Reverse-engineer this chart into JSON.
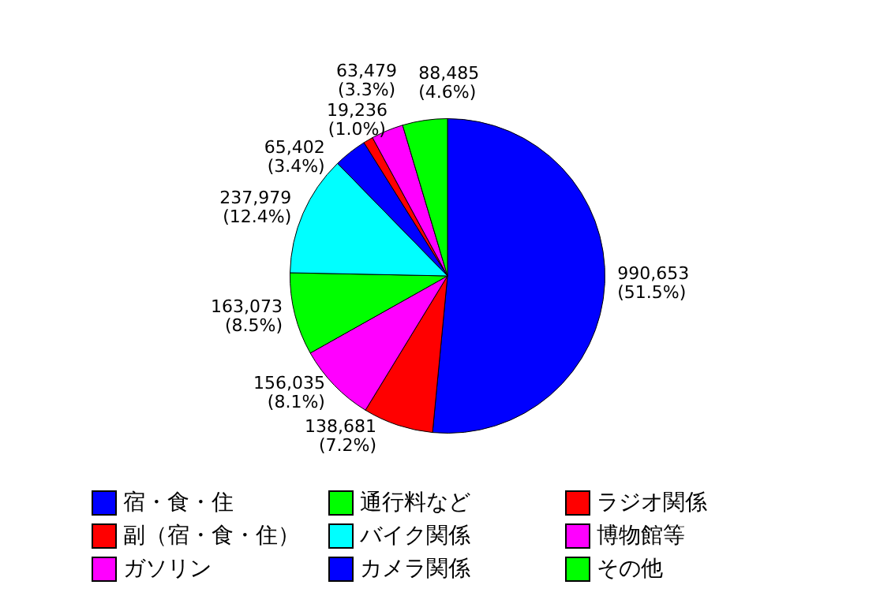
{
  "chart_data": {
    "type": "pie",
    "categories": [
      "宿・食・住",
      "副（宿・食・住）",
      "ガソリン",
      "通行料など",
      "バイク関係",
      "カメラ関係",
      "ラジオ関係",
      "博物館等",
      "その他"
    ],
    "values": [
      990653,
      138681,
      156035,
      163073,
      237979,
      65402,
      19236,
      63479,
      88485
    ],
    "colors": [
      "#0000ff",
      "#ff0000",
      "#ff00ff",
      "#00ff00",
      "#00ffff",
      "#0000ff",
      "#ff0000",
      "#ff00ff",
      "#00ff00"
    ],
    "value_labels": [
      "990,653\n(51.5%)",
      "138,681\n(7.2%)",
      "156,035\n(8.1%)",
      "163,073\n(8.5%)",
      "237,979\n(12.4%)",
      "65,402\n(3.4%)",
      "19,236\n(1.0%)",
      "63,479\n(3.3%)",
      "88,485\n(4.6%)"
    ],
    "legend": "bottom"
  }
}
